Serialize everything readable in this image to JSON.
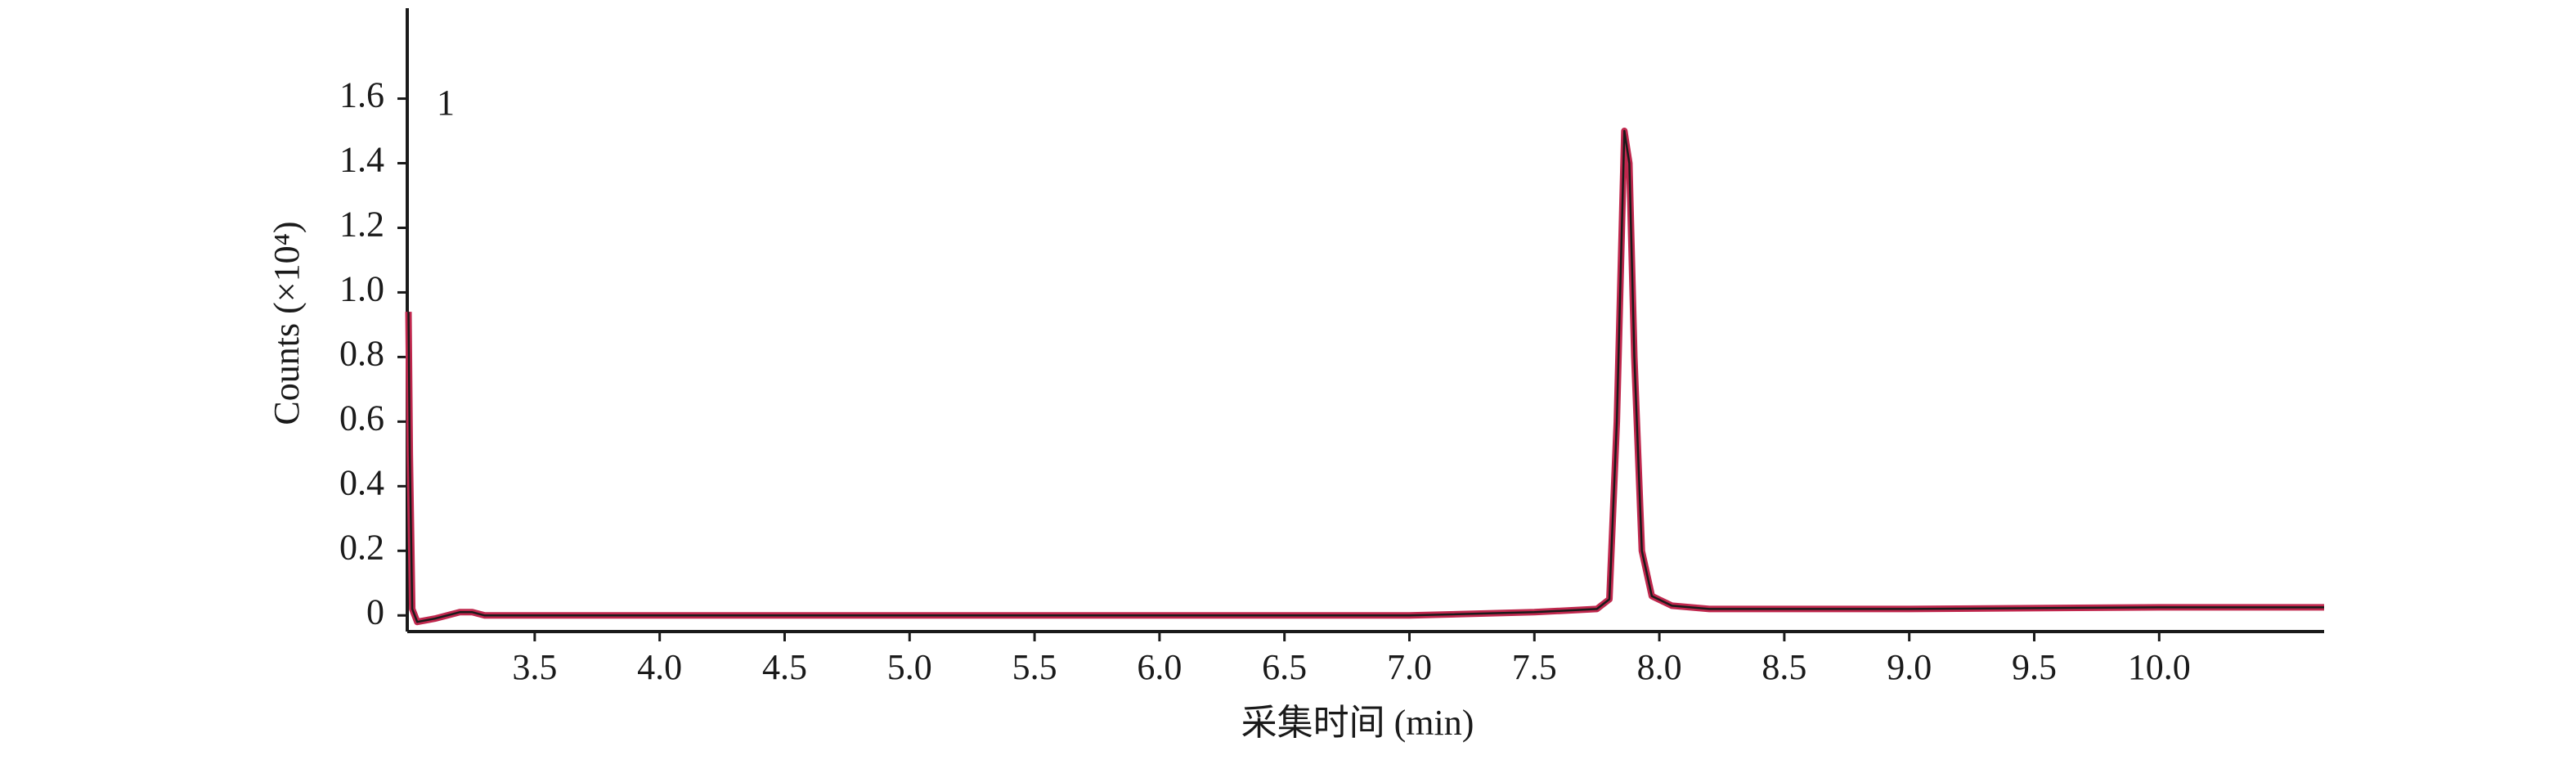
{
  "chart_data": {
    "type": "line",
    "annotation": "1",
    "xlabel": "采集时间 (min)",
    "ylabel": "Counts (×10⁴)",
    "x": [
      2.995,
      3.0,
      3.01,
      3.03,
      3.1,
      3.2,
      3.25,
      3.3,
      4.0,
      5.0,
      6.0,
      7.0,
      7.5,
      7.75,
      7.8,
      7.83,
      7.86,
      7.88,
      7.9,
      7.93,
      7.97,
      8.05,
      8.2,
      9.0,
      10.0,
      10.66
    ],
    "series": [
      {
        "color": "#c0284e",
        "overlay_color": "#1a1a1a",
        "values": [
          0.94,
          0.5,
          0.02,
          -0.02,
          -0.01,
          0.01,
          0.01,
          0.0,
          0.0,
          0.0,
          0.0,
          0.0,
          0.01,
          0.02,
          0.05,
          0.6,
          1.5,
          1.4,
          0.8,
          0.2,
          0.06,
          0.03,
          0.02,
          0.02,
          0.025,
          0.025
        ]
      }
    ],
    "xlim": [
      2.99,
      10.66
    ],
    "ylim": [
      -0.05,
      1.88
    ],
    "xticks": [
      3.5,
      {
        "value": 4,
        "label": "4.0"
      },
      4.5,
      {
        "value": 5,
        "label": "5.0"
      },
      5.5,
      {
        "value": 6,
        "label": "6.0"
      },
      6.5,
      {
        "value": 7,
        "label": "7.0"
      },
      7.5,
      {
        "value": 8,
        "label": "8.0"
      },
      8.5,
      {
        "value": 9,
        "label": "9.0"
      },
      9.5,
      {
        "value": 10,
        "label": "10.0"
      }
    ],
    "yticks": [
      0,
      0.2,
      0.4,
      0.6,
      0.8,
      {
        "value": 1,
        "label": "1.0"
      },
      1.2,
      1.4,
      1.6
    ],
    "grid": false
  }
}
